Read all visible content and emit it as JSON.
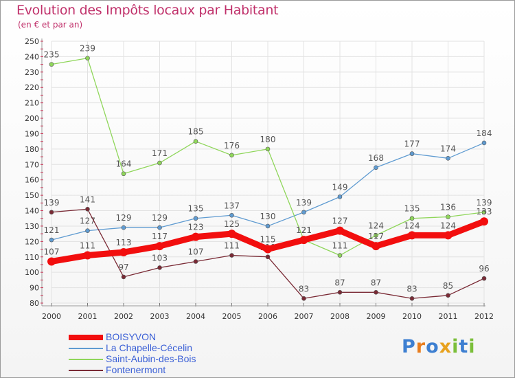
{
  "chart_data": {
    "type": "line",
    "title": "Evolution des Impôts locaux par Habitant",
    "subtitle": "(en € et par an)",
    "xlabel": "",
    "ylabel": "",
    "x": [
      "2000",
      "2001",
      "2002",
      "2003",
      "2004",
      "2005",
      "2006",
      "2007",
      "2008",
      "2009",
      "2010",
      "2011",
      "2012"
    ],
    "ylim": [
      80,
      250
    ],
    "yticks": [
      "80",
      "90",
      "100",
      "110",
      "120",
      "130",
      "140",
      "150",
      "160",
      "170",
      "180",
      "190",
      "200",
      "210",
      "220",
      "230",
      "240",
      "250"
    ],
    "grid": true,
    "legend_position": "bottom-left",
    "series": [
      {
        "name": "La Chapelle-Cécelin",
        "color": "#5f9bd1",
        "values": [
          121,
          127,
          129,
          129,
          135,
          137,
          130,
          139,
          149,
          168,
          177,
          174,
          184
        ],
        "labels": [
          "121",
          "127",
          "129",
          "129",
          "135",
          "137",
          "130",
          "139",
          "149",
          "168",
          "177",
          "174",
          "184"
        ]
      },
      {
        "name": "Saint-Aubin-des-Bois",
        "color": "#8fd65a",
        "values": [
          235,
          239,
          164,
          171,
          185,
          176,
          180,
          121,
          111,
          124,
          135,
          136,
          139
        ],
        "labels": [
          "235",
          "239",
          "164",
          "171",
          "185",
          "176",
          "180",
          "121",
          "111",
          "124",
          "135",
          "136",
          "139"
        ]
      },
      {
        "name": "Fontenermont",
        "color": "#7a2a35",
        "values": [
          139,
          141,
          97,
          103,
          107,
          111,
          110,
          83,
          87,
          87,
          83,
          85,
          96
        ],
        "labels": [
          "139",
          "141",
          "97",
          "103",
          "107",
          "111",
          "110",
          "83",
          "87",
          "87",
          "83",
          "85",
          "96"
        ]
      },
      {
        "name": "BOISYVON",
        "color": "#f20e0e",
        "values": [
          107,
          111,
          113,
          117,
          123,
          125,
          115,
          121,
          127,
          117,
          124,
          124,
          133
        ],
        "labels": [
          "107",
          "111",
          "113",
          "117",
          "123",
          "125",
          "115",
          "121",
          "127",
          "117",
          "124",
          "124",
          "133"
        ]
      }
    ],
    "legend": [
      "BOISYVON",
      "La Chapelle-Cécelin",
      "Saint-Aubin-des-Bois",
      "Fontenermont"
    ]
  },
  "logo": {
    "text": "Proxiti",
    "letters": [
      "P",
      "r",
      "o",
      "x",
      "i",
      "t",
      "i"
    ],
    "colors": [
      "#3d7fd1",
      "#e87d1e",
      "#3d7fd1",
      "#e8a21e",
      "#7bbf3a",
      "#3d7fd1",
      "#7bbf3a"
    ]
  }
}
